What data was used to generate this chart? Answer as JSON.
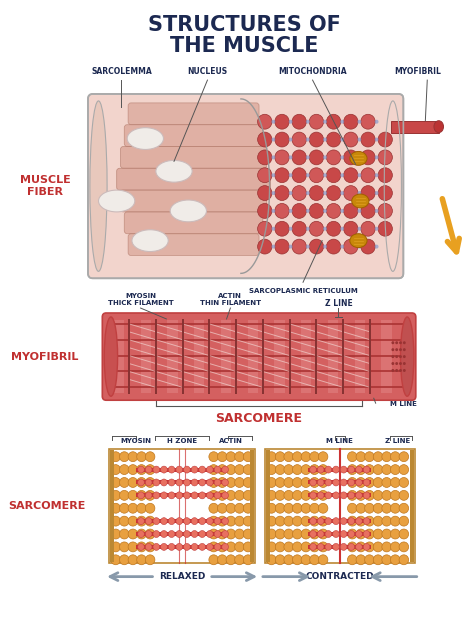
{
  "title_line1": "STRUCTURES OF",
  "title_line2": "THE MUSCLE",
  "title_color": "#1c2951",
  "bg_color": "#ffffff",
  "muscle_fiber_label": "MUSCLE\nFIBER",
  "myofibril_label": "MYOFIBRIL",
  "sarcomere_label": "SARCOMERE",
  "label_color": "#1c2951",
  "red_label_color": "#c03030",
  "fiber_bg": "#f2d4cc",
  "fiber_left_color": "#d4998a",
  "fiber_right_color": "#c05040",
  "fiber_right_border": "#993030",
  "fiber_outline": "#aaaaaa",
  "nucleus_fill": "#f0ece8",
  "nucleus_edge": "#ccbbbb",
  "mito_fill": "#d4a020",
  "myo_body": "#d46060",
  "myo_dark": "#aa3333",
  "myo_light": "#e08080",
  "myo_outline": "#c04040",
  "sarc_bead_fill": "#e8a040",
  "sarc_bead_edge": "#c07820",
  "sarc_myosin_fill": "#cc3333",
  "sarc_myosin_edge": "#993333",
  "sarc_pink_bead": "#e87060",
  "sarc_pink_edge": "#c04040",
  "z_line_color": "#bb8833",
  "m_line_color": "#cc3333",
  "border_color": "#999999",
  "arrow_color": "#8899aa",
  "orange_arrow_color": "#e8a020",
  "separator_color": "#aaaacc"
}
